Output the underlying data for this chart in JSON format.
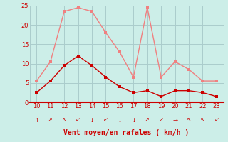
{
  "x": [
    10,
    11,
    12,
    13,
    14,
    15,
    16,
    17,
    18,
    19,
    20,
    21,
    22,
    23
  ],
  "y_rafales": [
    5.5,
    10.5,
    23.5,
    24.5,
    23.5,
    18.0,
    13.0,
    6.5,
    24.5,
    6.5,
    10.5,
    8.5,
    5.5,
    5.5
  ],
  "y_moyen": [
    2.5,
    5.5,
    9.5,
    12.0,
    9.5,
    6.5,
    4.0,
    2.5,
    3.0,
    1.5,
    3.0,
    3.0,
    2.5,
    1.5
  ],
  "color_rafales": "#f08080",
  "color_moyen": "#cc0000",
  "background_color": "#cceee8",
  "grid_color": "#aacccc",
  "axis_line_color": "#cc0000",
  "xlabel": "Vent moyen/en rafales ( km/h )",
  "xlabel_color": "#cc0000",
  "tick_color": "#cc0000",
  "ylim": [
    0,
    25
  ],
  "xlim": [
    9.5,
    23.5
  ],
  "yticks": [
    0,
    5,
    10,
    15,
    20,
    25
  ],
  "xticks": [
    10,
    11,
    12,
    13,
    14,
    15,
    16,
    17,
    18,
    19,
    20,
    21,
    22,
    23
  ],
  "wind_arrows": [
    "↑",
    "↗",
    "↖",
    "↙",
    "↓",
    "↙",
    "↓",
    "↓",
    "↗",
    "↙",
    "→",
    "↖",
    "↖",
    "↙"
  ]
}
